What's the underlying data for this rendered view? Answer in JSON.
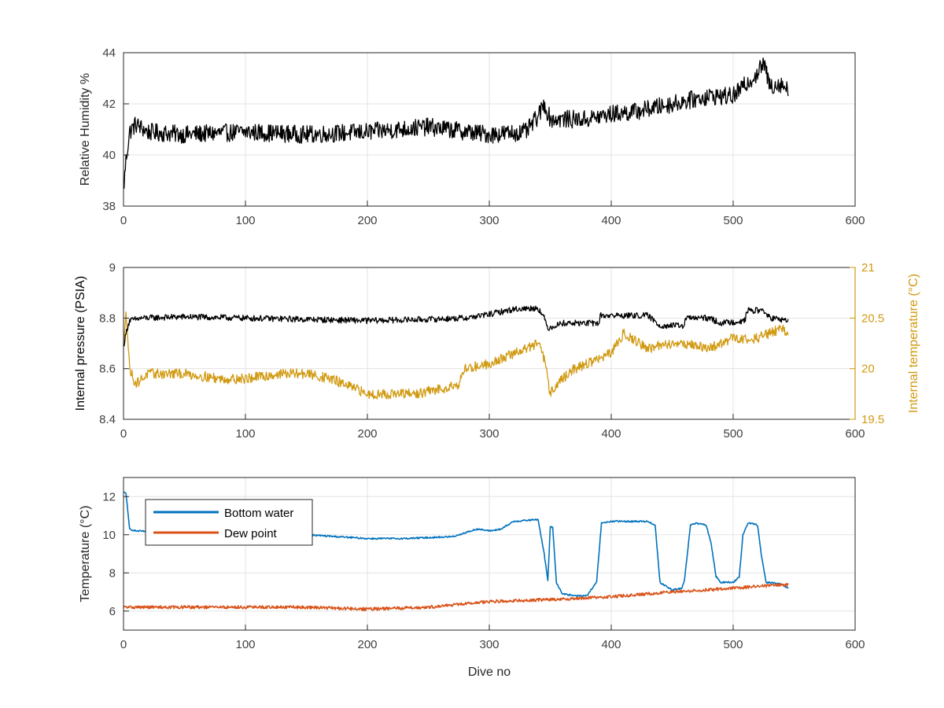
{
  "chart_data": [
    {
      "type": "line",
      "xlabel": "",
      "ylabel": "Relative Humidity %",
      "xlim": [
        0,
        600
      ],
      "ylim": [
        38,
        44
      ],
      "xticks": [
        0,
        100,
        200,
        300,
        400,
        500,
        600
      ],
      "yticks": [
        38,
        40,
        42,
        44
      ],
      "grid": true,
      "series": [
        {
          "color": "#000000",
          "noise": 0.35,
          "x": [
            0,
            2,
            5,
            10,
            20,
            50,
            100,
            150,
            200,
            250,
            300,
            330,
            340,
            345,
            350,
            380,
            400,
            420,
            430,
            440,
            460,
            480,
            500,
            520,
            525,
            530,
            540,
            545
          ],
          "values": [
            38.6,
            39.8,
            40.9,
            41.2,
            40.9,
            40.8,
            40.9,
            40.8,
            40.9,
            41.1,
            40.8,
            40.9,
            41.5,
            42.0,
            41.4,
            41.4,
            41.6,
            41.7,
            41.8,
            41.9,
            42.1,
            42.3,
            42.3,
            43.2,
            43.6,
            42.7,
            42.8,
            42.5
          ]
        }
      ]
    },
    {
      "type": "line",
      "xlabel": "",
      "ylabel": "Internal pressure (PSIA)",
      "y2label": "Internal temperature (°C)",
      "xlim": [
        0,
        600
      ],
      "ylim": [
        8.4,
        9.0
      ],
      "y2lim": [
        19.5,
        21.0
      ],
      "xticks": [
        0,
        100,
        200,
        300,
        400,
        500,
        600
      ],
      "yticks": [
        8.4,
        8.6,
        8.8,
        9.0
      ],
      "ytick_labels": [
        "8.4",
        "8.6",
        "8.8",
        "9"
      ],
      "y2ticks": [
        19.5,
        20.0,
        20.5,
        21.0
      ],
      "y2tick_labels": [
        "19.5",
        "20",
        "20.5",
        "21"
      ],
      "axis2_color": "#d19a12",
      "grid": true,
      "series": [
        {
          "axis": "left",
          "color": "#000000",
          "noise": 0.012,
          "x": [
            0,
            3,
            5,
            15,
            50,
            100,
            150,
            200,
            250,
            280,
            300,
            320,
            340,
            345,
            348,
            360,
            390,
            391,
            430,
            440,
            460,
            461,
            480,
            490,
            510,
            511,
            525,
            530,
            545
          ],
          "values": [
            8.69,
            8.76,
            8.79,
            8.8,
            8.805,
            8.8,
            8.795,
            8.79,
            8.795,
            8.8,
            8.815,
            8.835,
            8.84,
            8.8,
            8.76,
            8.78,
            8.78,
            8.81,
            8.81,
            8.77,
            8.77,
            8.8,
            8.8,
            8.78,
            8.79,
            8.83,
            8.83,
            8.8,
            8.79
          ]
        },
        {
          "axis": "right",
          "color": "#d19a12",
          "noise": 0.05,
          "x": [
            0,
            2,
            5,
            10,
            20,
            50,
            80,
            100,
            130,
            150,
            170,
            180,
            200,
            220,
            240,
            260,
            275,
            280,
            300,
            320,
            340,
            345,
            350,
            355,
            370,
            400,
            410,
            430,
            450,
            460,
            480,
            500,
            520,
            540,
            545
          ],
          "values": [
            20.2,
            20.6,
            20.0,
            19.85,
            19.95,
            19.95,
            19.9,
            19.9,
            19.95,
            19.95,
            19.9,
            19.85,
            19.75,
            19.75,
            19.75,
            19.8,
            19.85,
            20.0,
            20.05,
            20.15,
            20.25,
            20.1,
            19.75,
            19.85,
            20.0,
            20.15,
            20.35,
            20.2,
            20.25,
            20.25,
            20.2,
            20.3,
            20.3,
            20.4,
            20.35
          ]
        }
      ]
    },
    {
      "type": "line",
      "xlabel": "Dive no",
      "ylabel": "Temperature (°C)",
      "xlim": [
        0,
        600
      ],
      "ylim": [
        5,
        13
      ],
      "xticks": [
        0,
        100,
        200,
        300,
        400,
        500,
        600
      ],
      "yticks": [
        6,
        8,
        10,
        12
      ],
      "grid": true,
      "legend": "top-left",
      "series": [
        {
          "name": "Bottom water",
          "color": "#0072bd",
          "noise": 0.04,
          "x": [
            0,
            2,
            4,
            5,
            10,
            30,
            100,
            150,
            200,
            230,
            270,
            290,
            300,
            310,
            320,
            340,
            345,
            348,
            350,
            352,
            355,
            360,
            370,
            380,
            388,
            392,
            400,
            420,
            430,
            436,
            440,
            450,
            458,
            460,
            465,
            470,
            478,
            482,
            486,
            490,
            500,
            505,
            508,
            512,
            515,
            520,
            523,
            527,
            530,
            540,
            545
          ],
          "values": [
            12.2,
            12.2,
            10.9,
            10.3,
            10.2,
            10.15,
            10.1,
            10.0,
            9.8,
            9.8,
            9.9,
            10.3,
            10.2,
            10.3,
            10.7,
            10.8,
            9.0,
            7.6,
            10.4,
            10.4,
            7.5,
            6.9,
            6.8,
            6.8,
            7.5,
            10.6,
            10.7,
            10.7,
            10.7,
            10.5,
            7.5,
            7.1,
            7.2,
            7.6,
            10.5,
            10.6,
            10.5,
            9.5,
            7.8,
            7.5,
            7.5,
            7.8,
            10.0,
            10.6,
            10.6,
            10.5,
            9.0,
            7.5,
            7.5,
            7.4,
            7.2
          ]
        },
        {
          "name": "Dew point",
          "color": "#d95319",
          "noise": 0.08,
          "x": [
            0,
            50,
            100,
            150,
            200,
            250,
            300,
            350,
            400,
            450,
            500,
            545
          ],
          "values": [
            6.2,
            6.2,
            6.2,
            6.2,
            6.1,
            6.2,
            6.5,
            6.6,
            6.75,
            7.0,
            7.2,
            7.4
          ]
        }
      ]
    }
  ]
}
